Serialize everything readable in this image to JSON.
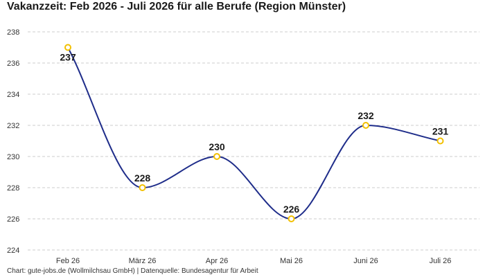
{
  "chart_data": {
    "type": "line",
    "title": "Vakanzzeit: Feb 2026 - Juli 2026 für alle Berufe (Region Münster)",
    "categories": [
      "Feb 26",
      "März 26",
      "Apr 26",
      "Mai 26",
      "Juni 26",
      "Juli 26"
    ],
    "series": [
      {
        "values": [
          237,
          228,
          230,
          226,
          232,
          231
        ]
      }
    ],
    "xlabel": "",
    "ylabel": "",
    "ylim": [
      224,
      238
    ],
    "yticks": [
      224,
      226,
      228,
      230,
      232,
      234,
      236,
      238
    ],
    "grid": true,
    "legend": "none",
    "colors": {
      "line": "#1f2d8a",
      "marker": "#f2c000",
      "grid": "#cccccc"
    }
  },
  "footer": "Chart: gute-jobs.de (Wollmilchsau GmbH) | Datenquelle: Bundesagentur für Arbeit"
}
